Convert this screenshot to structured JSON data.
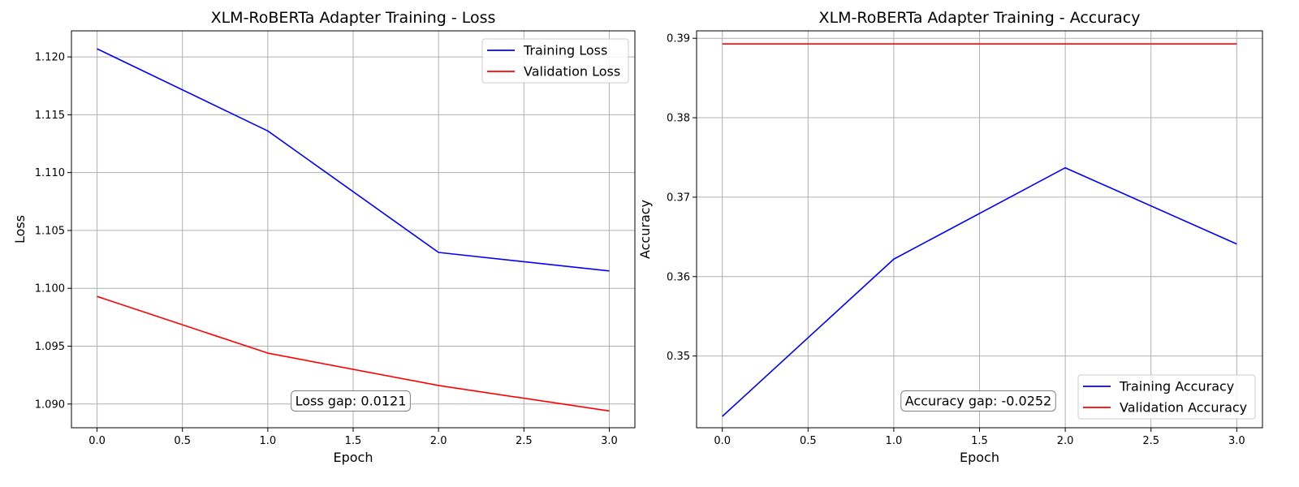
{
  "chart_data": [
    {
      "type": "line",
      "title": "XLM-RoBERTa Adapter Training - Loss",
      "xlabel": "Epoch",
      "ylabel": "Loss",
      "x": [
        0,
        1,
        2,
        3
      ],
      "xlim": [
        -0.15,
        3.15
      ],
      "ylim": [
        1.08795,
        1.12225
      ],
      "xticks": [
        "0.0",
        "0.5",
        "1.0",
        "1.5",
        "2.0",
        "2.5",
        "3.0"
      ],
      "yticks": [
        "1.090",
        "1.095",
        "1.100",
        "1.105",
        "1.110",
        "1.115",
        "1.120"
      ],
      "grid": true,
      "legend_position": "top-right",
      "series": [
        {
          "name": "Training Loss",
          "color": "#0000ff",
          "values": [
            1.1207,
            1.1136,
            1.1031,
            1.1015
          ]
        },
        {
          "name": "Validation Loss",
          "color": "#ff0000",
          "values": [
            1.0993,
            1.0944,
            1.0916,
            1.0894
          ]
        }
      ],
      "annotation": {
        "text": "Loss gap: 0.0121"
      }
    },
    {
      "type": "line",
      "title": "XLM-RoBERTa Adapter Training - Accuracy",
      "xlabel": "Epoch",
      "ylabel": "Accuracy",
      "x": [
        0,
        1,
        2,
        3
      ],
      "xlim": [
        -0.15,
        3.15
      ],
      "ylim": [
        0.34097,
        0.39094
      ],
      "xticks": [
        "0.0",
        "0.5",
        "1.0",
        "1.5",
        "2.0",
        "2.5",
        "3.0"
      ],
      "yticks": [
        "0.35",
        "0.36",
        "0.37",
        "0.38",
        "0.39"
      ],
      "grid": true,
      "legend_position": "bottom-right",
      "series": [
        {
          "name": "Training Accuracy",
          "color": "#0000ff",
          "values": [
            0.3424,
            0.3622,
            0.3737,
            0.3641
          ]
        },
        {
          "name": "Validation Accuracy",
          "color": "#ff0000",
          "values": [
            0.3893,
            0.3893,
            0.3893,
            0.3893
          ]
        }
      ],
      "annotation": {
        "text": "Accuracy gap: -0.0252"
      }
    }
  ]
}
